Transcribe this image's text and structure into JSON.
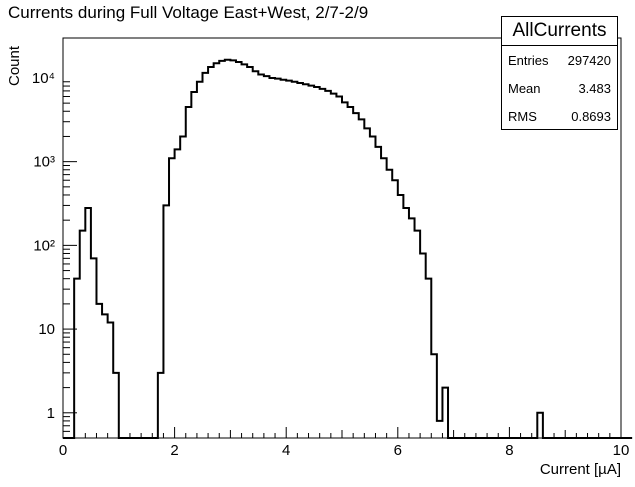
{
  "chart_data": {
    "type": "histogram",
    "title": "Currents during Full Voltage East+West, 2/7-2/9",
    "xlabel": "Current [µA]",
    "ylabel": "Count",
    "xlim": [
      0,
      10
    ],
    "ylim": [
      0.5,
      30000
    ],
    "log_y": true,
    "grid": false,
    "bin_width": 0.1,
    "x_ticks": [
      "0",
      "2",
      "4",
      "6",
      "8",
      "10"
    ],
    "y_ticks": [
      {
        "value": 1,
        "label": "1"
      },
      {
        "value": 10,
        "label": "10"
      },
      {
        "value": 100,
        "label": "10²"
      },
      {
        "value": 1000,
        "label": "10³"
      },
      {
        "value": 10000,
        "label": "10⁴"
      }
    ],
    "values": [
      0,
      0,
      40,
      150,
      280,
      70,
      20,
      15,
      12,
      3,
      0,
      0,
      0,
      0,
      0,
      0,
      0,
      3,
      300,
      1100,
      1400,
      2000,
      4500,
      6800,
      9000,
      11500,
      13500,
      15000,
      16000,
      16500,
      16200,
      15500,
      14500,
      13500,
      12000,
      11000,
      10500,
      10000,
      9800,
      9500,
      9300,
      9000,
      8700,
      8400,
      8100,
      7800,
      7400,
      7000,
      6500,
      6000,
      5100,
      4500,
      3800,
      3200,
      2500,
      2000,
      1500,
      1100,
      800,
      600,
      400,
      280,
      210,
      150,
      80,
      40,
      5,
      0.8,
      2,
      0,
      0,
      0,
      0,
      0,
      0,
      0,
      0,
      0,
      0,
      0,
      0,
      0,
      0,
      0,
      0,
      1,
      0,
      0,
      0,
      0,
      0,
      0,
      0,
      0,
      0,
      0,
      0,
      0,
      0,
      0,
      0,
      0
    ],
    "stats": {
      "name": "AllCurrents",
      "entries_label": "Entries",
      "entries": "297420",
      "mean_label": "Mean",
      "mean": "3.483",
      "rms_label": "RMS",
      "rms": "0.8693"
    }
  }
}
